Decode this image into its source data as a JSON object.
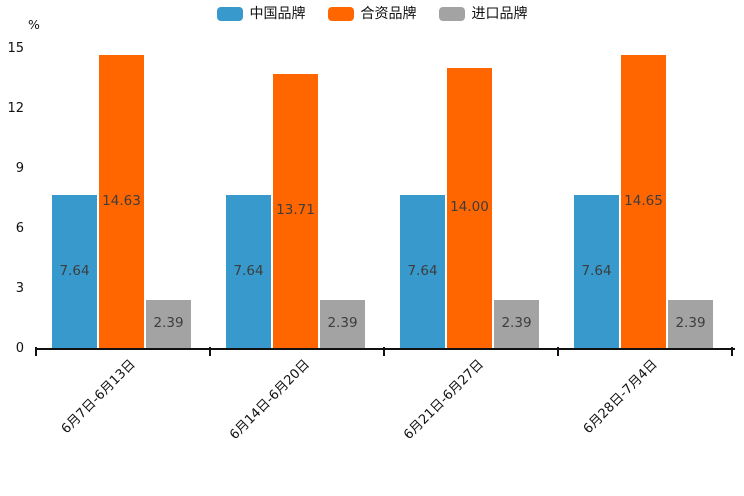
{
  "chart_data": {
    "type": "bar",
    "title": "",
    "unit_label": "%",
    "categories": [
      "6月7日-6月13日",
      "6月14日-6月20日",
      "6月21日-6月27日",
      "6月28日-7月4日"
    ],
    "series": [
      {
        "name": "中国品牌",
        "color": "#3899cc",
        "values": [
          7.64,
          7.64,
          7.64,
          7.64
        ],
        "labels": [
          "7.64",
          "7.64",
          "7.64",
          "7.64"
        ]
      },
      {
        "name": "合资品牌",
        "color": "#ff6600",
        "values": [
          14.63,
          13.71,
          14.0,
          14.65
        ],
        "labels": [
          "14.63",
          "13.71",
          "14.00",
          "14.65"
        ]
      },
      {
        "name": "进口品牌",
        "color": "#a3a3a3",
        "values": [
          2.39,
          2.39,
          2.39,
          2.39
        ],
        "labels": [
          "2.39",
          "2.39",
          "2.39",
          "2.39"
        ]
      }
    ],
    "y_ticks": [
      0,
      3,
      6,
      9,
      12,
      15
    ],
    "ylim": [
      0,
      15
    ],
    "grid": false,
    "legend_position": "top",
    "axis_color": "#111111",
    "value_label_color": "#3d3d3d"
  }
}
